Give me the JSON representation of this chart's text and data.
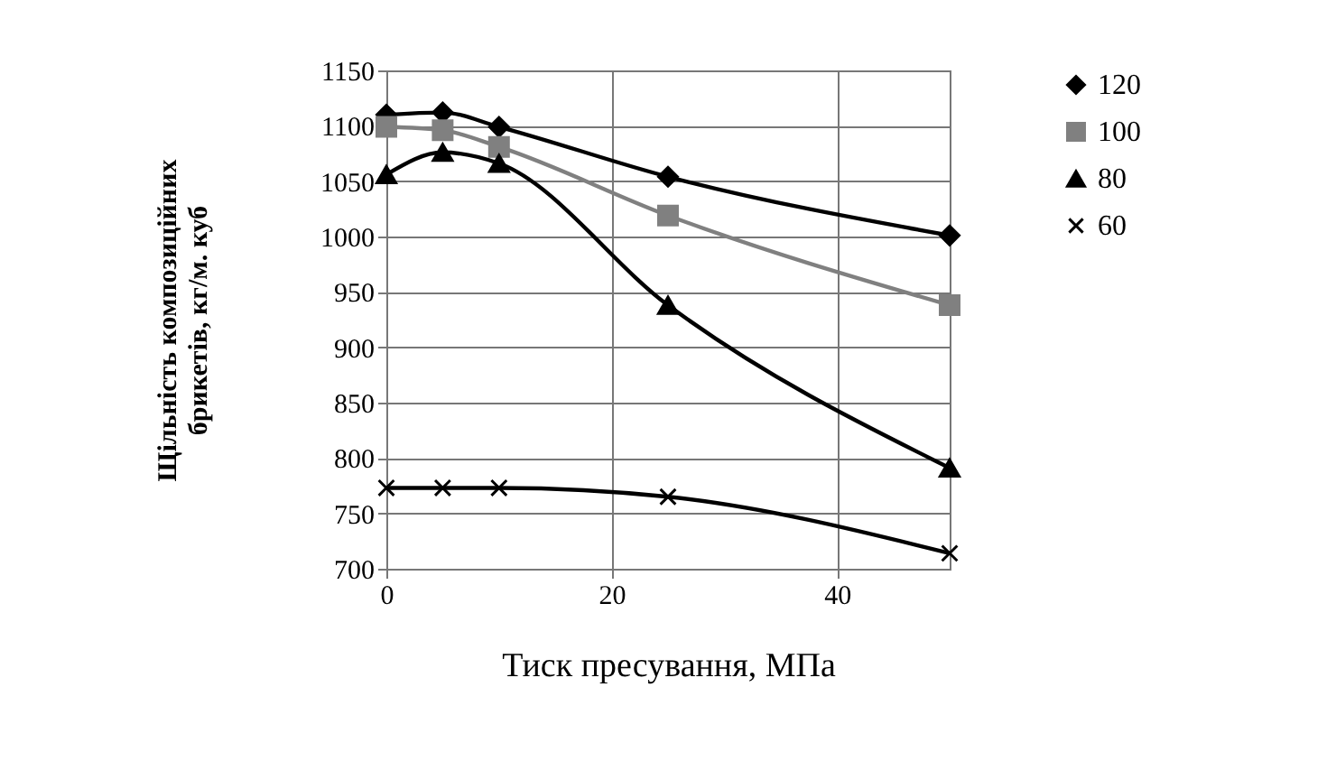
{
  "chart_data": {
    "type": "line",
    "xlabel": "Тиск  пресування, МПа",
    "ylabel": "Щільність композиційних брикетів, кг/м. куб",
    "x": [
      0,
      5,
      10,
      25,
      50
    ],
    "series": [
      {
        "name": "120",
        "color": "#000000",
        "marker": "diamond",
        "values": [
          1110,
          1112,
          1099,
          1054,
          1001
        ]
      },
      {
        "name": "100",
        "color": "#808080",
        "marker": "square",
        "values": [
          1099,
          1096,
          1081,
          1019,
          938
        ]
      },
      {
        "name": "80",
        "color": "#000000",
        "marker": "triangle",
        "values": [
          1056,
          1076,
          1066,
          938,
          791
        ]
      },
      {
        "name": "60",
        "color": "#000000",
        "marker": "cross",
        "values": [
          773,
          773,
          773,
          765,
          714
        ]
      }
    ],
    "xlim": [
      0,
      50
    ],
    "xticks": [
      0,
      20,
      40
    ],
    "ylim": [
      700,
      1150
    ],
    "yticks": [
      700,
      750,
      800,
      850,
      900,
      950,
      1000,
      1050,
      1100,
      1150
    ],
    "grid": true,
    "legend": "right"
  }
}
